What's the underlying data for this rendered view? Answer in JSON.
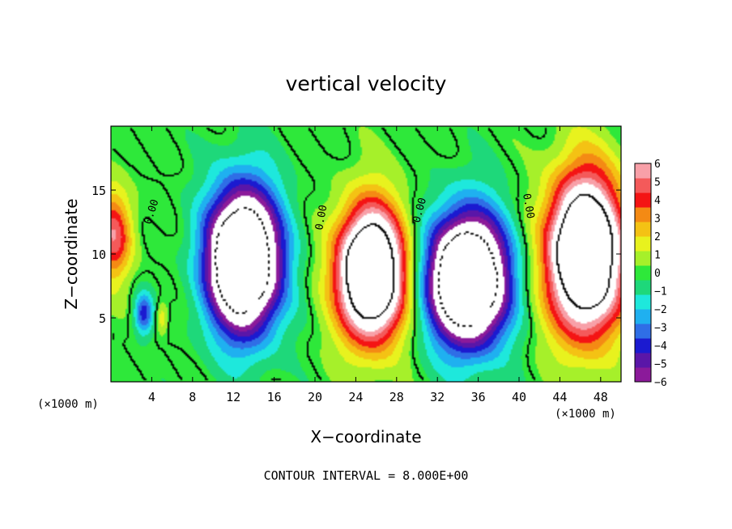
{
  "chart_data": {
    "type": "heatmap",
    "title": "vertical velocity",
    "xlabel": "X−coordinate",
    "ylabel": "Z−coordinate",
    "x_unit_label": "(×1000 m)",
    "x_unit_label_right": "(×1000 m)",
    "xlim": [
      0,
      50
    ],
    "ylim": [
      0,
      20
    ],
    "x_ticks": [
      4,
      8,
      12,
      16,
      20,
      24,
      28,
      32,
      36,
      40,
      44,
      48
    ],
    "y_ticks": [
      5,
      10,
      15
    ],
    "colorbar": {
      "ticks": [
        6,
        5,
        4,
        3,
        2,
        1,
        0,
        -1,
        -2,
        -3,
        -4,
        -5,
        -6
      ],
      "tick_labels": [
        "6",
        "5",
        "4",
        "3",
        "2",
        "1",
        "0",
        "−1",
        "−2",
        "−3",
        "−4",
        "−5",
        "−6"
      ],
      "colors": [
        "#8b1a9a",
        "#5a16a8",
        "#1b1ad0",
        "#2f6ee6",
        "#1fb0f0",
        "#1ee8dc",
        "#1ed87a",
        "#2ee83a",
        "#a6f02a",
        "#e8f21e",
        "#f4c214",
        "#f48a14",
        "#f41414",
        "#f45a5a",
        "#f8a0a8"
      ]
    },
    "contour_labels": [
      "0.00",
      "0.00",
      "0.00",
      "0.00"
    ],
    "footer": "CONTOUR INTERVAL = 8.000E+00",
    "features": [
      {
        "sign": "up",
        "x": 0.3,
        "z": 11.5,
        "amp": 5,
        "sx": 1.8,
        "sz": 3.5
      },
      {
        "sign": "down",
        "x": 3.2,
        "z": 5.3,
        "amp": 4,
        "sx": 0.9,
        "sz": 1.6
      },
      {
        "sign": "up",
        "x": 5.0,
        "z": 5.0,
        "amp": 2,
        "sx": 0.6,
        "sz": 1.2
      },
      {
        "sign": "down",
        "x": 13.0,
        "z": 9.5,
        "amp": 14,
        "sx": 3.5,
        "sz": 5.5
      },
      {
        "sign": "up",
        "x": 25.5,
        "z": 8.5,
        "amp": 14,
        "sx": 3.2,
        "sz": 5.0
      },
      {
        "sign": "down",
        "x": 35.0,
        "z": 8.0,
        "amp": 14,
        "sx": 3.8,
        "sz": 5.0
      },
      {
        "sign": "up",
        "x": 46.5,
        "z": 10.0,
        "amp": 14,
        "sx": 3.6,
        "sz": 6.0
      }
    ]
  }
}
